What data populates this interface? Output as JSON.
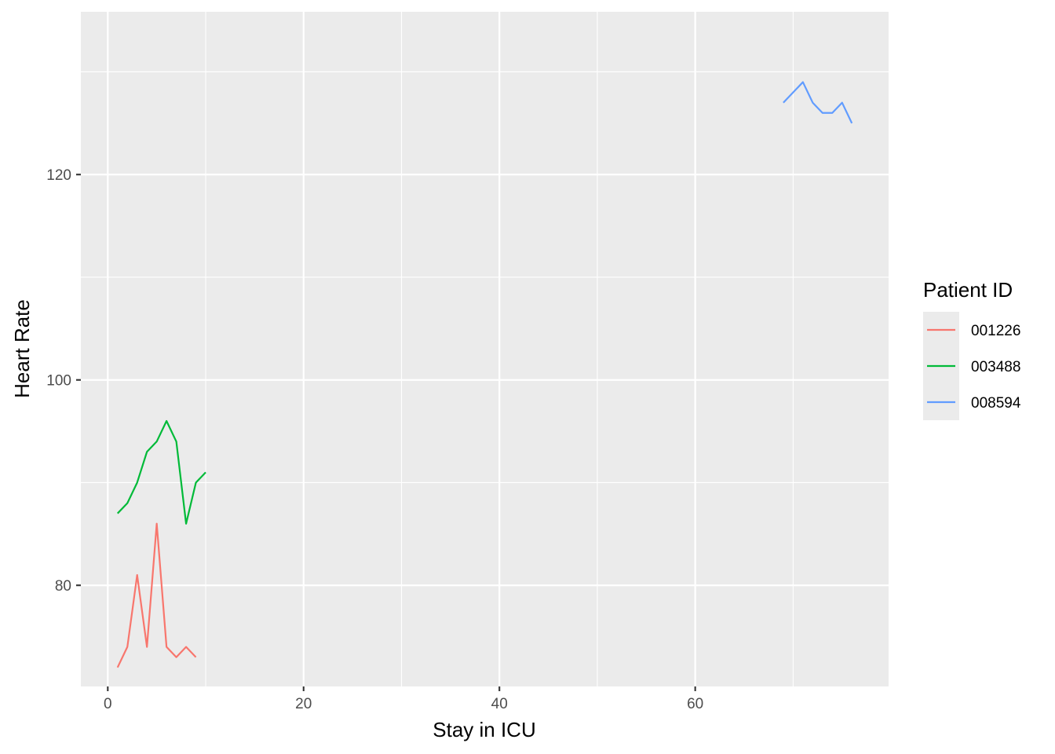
{
  "chart_data": {
    "type": "line",
    "xlabel": "Stay in ICU",
    "ylabel": "Heart Rate",
    "xlim": [
      -2.75,
      79.75
    ],
    "ylim": [
      70.15,
      135.85
    ],
    "x_ticks": [
      0,
      20,
      40,
      60
    ],
    "x_minor": [
      10,
      30,
      50,
      70
    ],
    "y_ticks": [
      80,
      100,
      120
    ],
    "y_minor": [
      70,
      90,
      110,
      130
    ],
    "x_tick_labels": [
      "0",
      "20",
      "40",
      "60"
    ],
    "y_tick_labels": [
      "80",
      "100",
      "120"
    ],
    "grid": true,
    "legend": {
      "title": "Patient ID",
      "placement": "right"
    },
    "series": [
      {
        "name": "001226",
        "color": "#F8766D",
        "x": [
          1,
          2,
          3,
          4,
          5,
          6,
          7,
          8,
          9
        ],
        "y": [
          72,
          74,
          81,
          74,
          86,
          74,
          73,
          74,
          73
        ]
      },
      {
        "name": "003488",
        "color": "#00BA38",
        "x": [
          1,
          2,
          3,
          4,
          5,
          6,
          7,
          8,
          9,
          10
        ],
        "y": [
          87,
          88,
          90,
          93,
          94,
          96,
          94,
          86,
          90,
          91
        ]
      },
      {
        "name": "008594",
        "color": "#619CFF",
        "x": [
          69,
          70,
          71,
          72,
          73,
          74,
          75,
          76
        ],
        "y": [
          127,
          128,
          129,
          127,
          126,
          126,
          127,
          125
        ]
      }
    ]
  }
}
